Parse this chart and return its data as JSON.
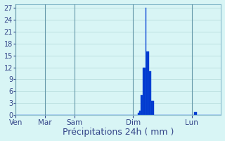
{
  "xlabel": "Précipitations 24h ( mm )",
  "background_color": "#d8f5f5",
  "bar_color": "#0033cc",
  "bar_edge_color": "#1155dd",
  "ylim": [
    0,
    28
  ],
  "yticks": [
    0,
    3,
    6,
    9,
    12,
    15,
    18,
    21,
    24,
    27
  ],
  "grid_color": "#b0d8d8",
  "day_labels": [
    "Ven",
    "Mar",
    "Sam",
    "Dim",
    "Lun"
  ],
  "day_positions": [
    0,
    24,
    48,
    96,
    144
  ],
  "total_hours": 168,
  "bar_values": [
    0,
    0,
    0,
    0,
    0,
    0,
    0,
    0,
    0,
    0,
    0,
    0,
    0,
    0,
    0,
    0,
    0,
    0,
    0,
    0,
    0,
    0,
    0,
    0,
    0,
    0,
    0,
    0,
    0,
    0,
    0,
    0,
    0,
    0,
    0,
    0,
    0,
    0,
    0,
    0,
    0,
    0,
    0,
    0,
    0,
    0,
    0,
    0,
    0,
    0,
    0,
    0,
    0,
    0,
    0,
    0,
    0,
    0,
    0,
    0,
    0,
    0,
    0,
    0,
    0,
    0,
    0,
    0,
    0,
    0,
    0,
    0,
    0,
    0,
    0,
    0,
    0,
    0,
    0,
    0,
    0,
    0,
    0,
    0,
    0,
    0,
    0,
    0,
    0,
    0,
    0,
    0,
    0,
    0,
    0,
    0,
    0,
    0,
    0,
    0,
    0.5,
    1,
    5,
    5,
    12,
    12,
    27,
    16,
    16,
    11,
    11,
    3.5,
    3.5,
    0,
    0,
    0,
    0,
    0,
    0,
    0,
    0,
    0,
    0,
    0,
    0,
    0,
    0,
    0,
    0,
    0,
    0,
    0,
    0,
    0,
    0,
    0,
    0,
    0,
    0,
    0,
    0,
    0,
    0,
    0,
    0,
    0,
    0.7,
    0.7,
    0,
    0,
    0,
    0,
    0,
    0,
    0,
    0,
    0,
    0,
    0,
    0,
    0,
    0,
    0,
    0,
    0,
    0,
    0,
    0
  ],
  "xlabel_fontsize": 9,
  "tick_fontsize": 7,
  "day_label_fontsize": 7.5,
  "spine_color": "#88bbcc",
  "tick_color": "#334488",
  "label_color": "#334488"
}
